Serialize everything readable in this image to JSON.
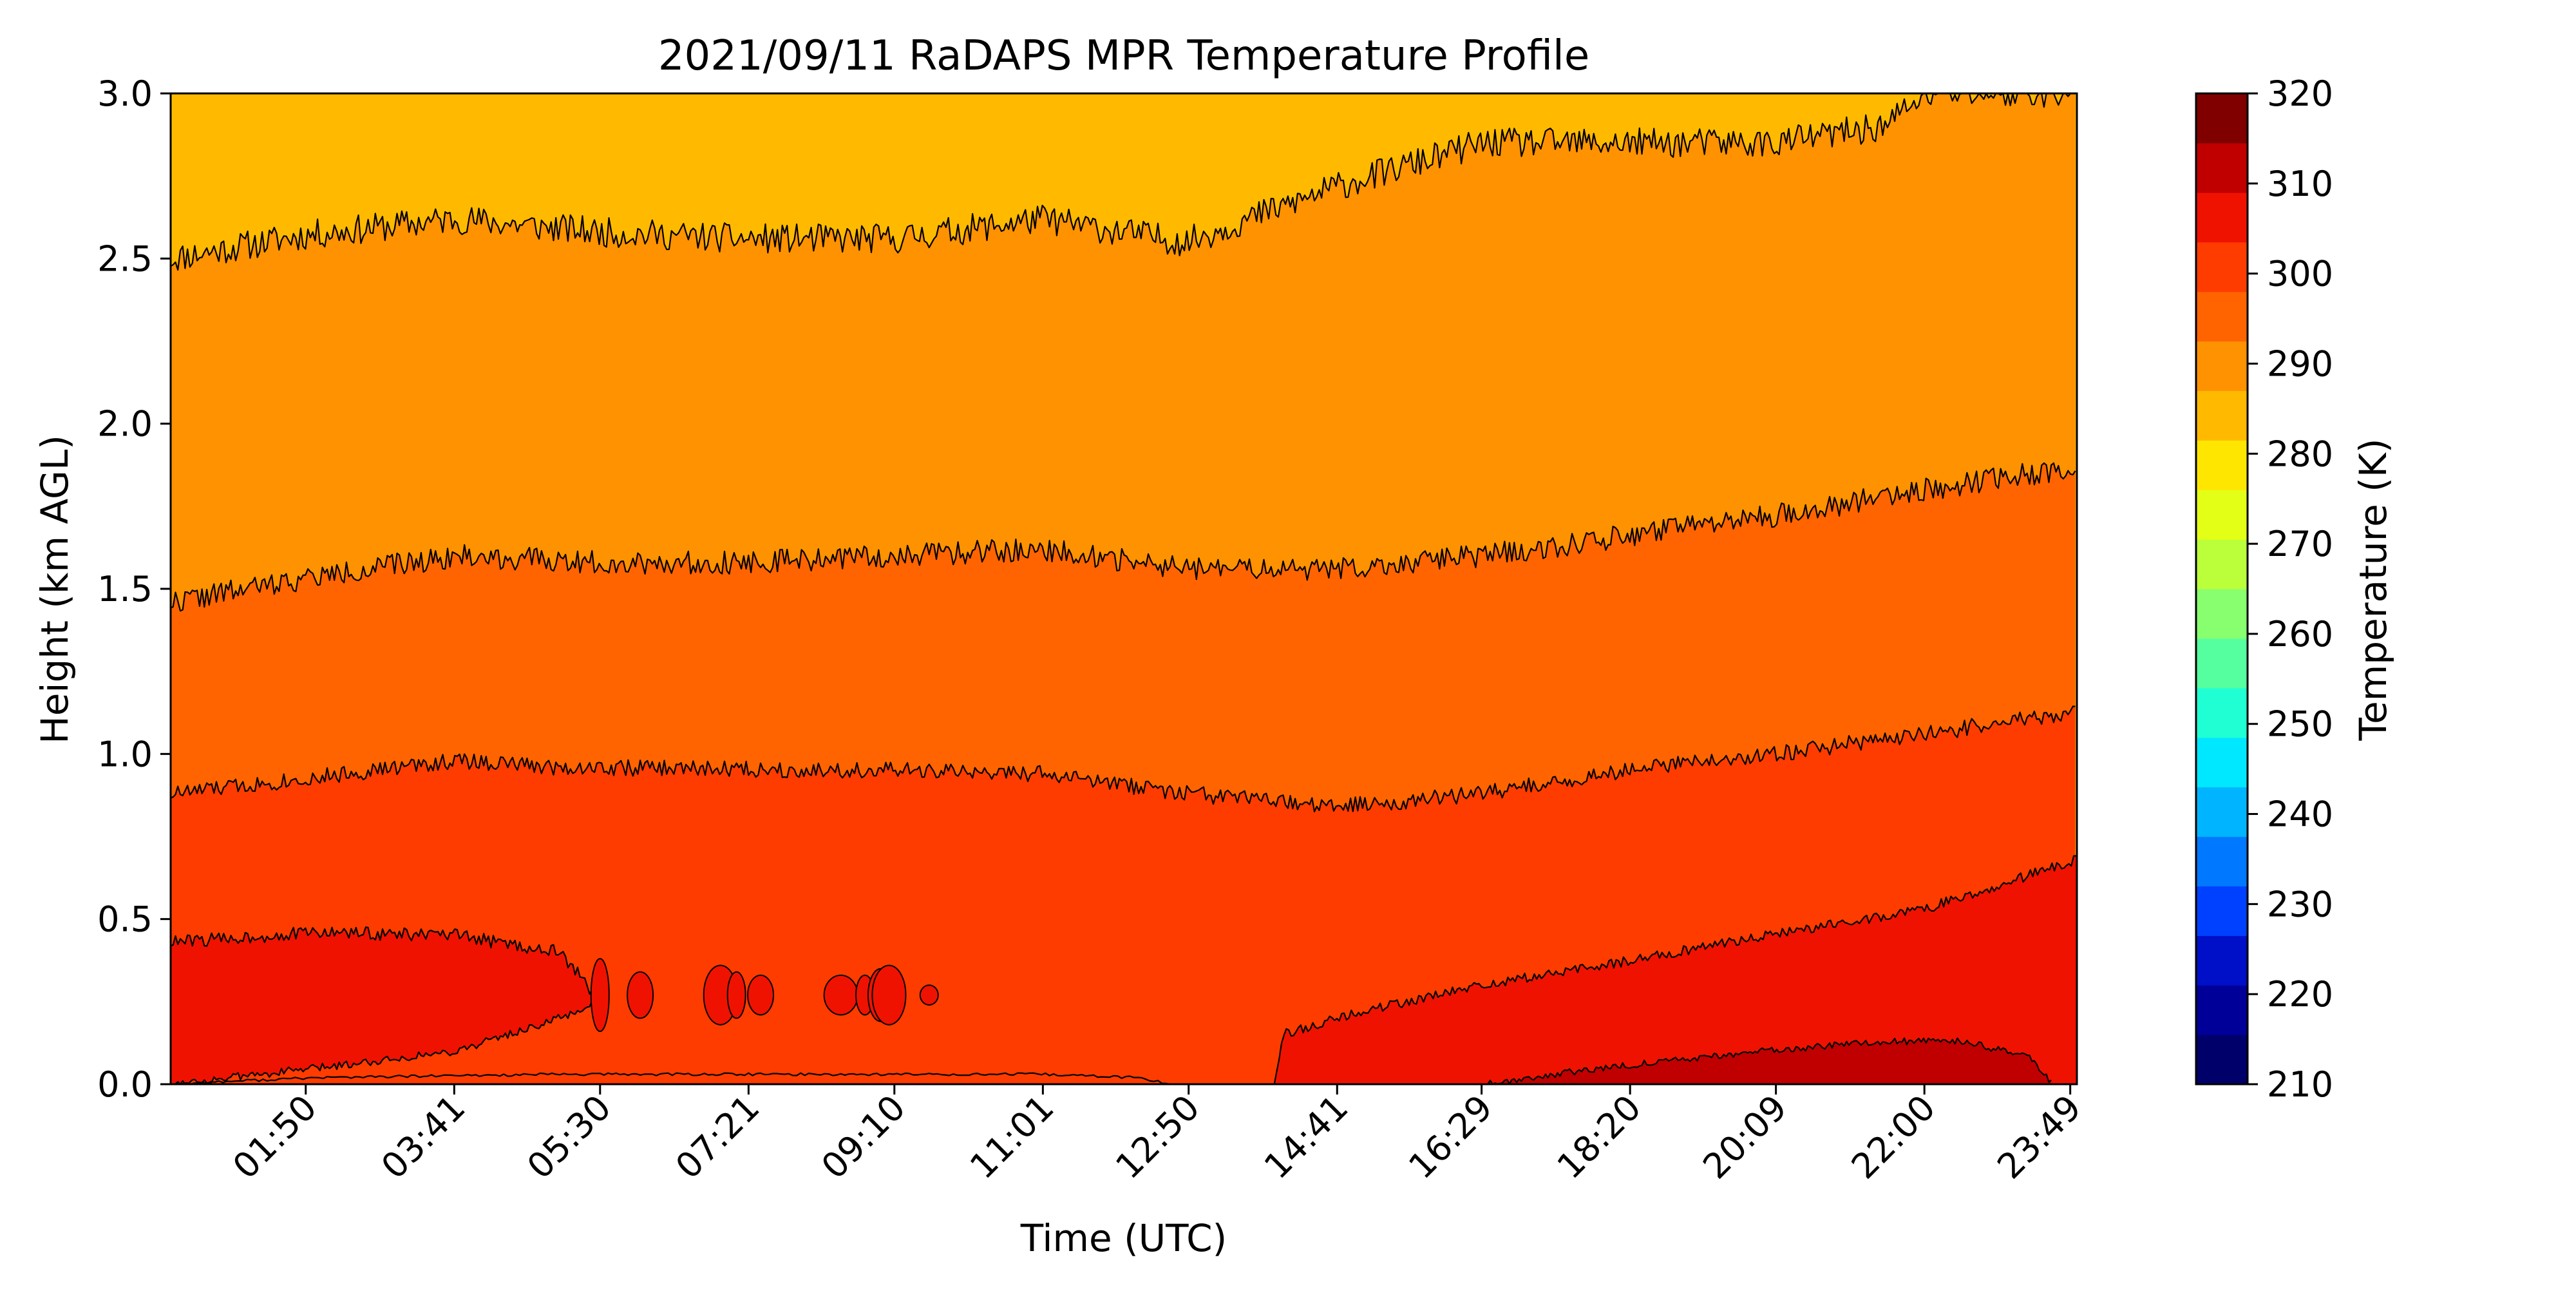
{
  "chart_data": {
    "type": "heatmap",
    "subtype": "filled-contour",
    "title": "2021/09/11 RaDAPS MPR Temperature Profile",
    "xlabel": "Time (UTC)",
    "ylabel": "Height (km AGL)",
    "x_tick_labels": [
      "01:50",
      "03:41",
      "05:30",
      "07:21",
      "09:10",
      "11:01",
      "12:50",
      "14:41",
      "16:29",
      "18:20",
      "20:09",
      "22:00",
      "23:49"
    ],
    "x_tick_hours": [
      1.833,
      3.683,
      5.5,
      7.35,
      9.167,
      11.017,
      12.833,
      14.683,
      16.483,
      18.333,
      20.15,
      22.0,
      23.817
    ],
    "xlim_hours": [
      0.15,
      23.9
    ],
    "ylim": [
      0,
      3
    ],
    "y_ticks": [
      0.0,
      0.5,
      1.0,
      1.5,
      2.0,
      2.5,
      3.0
    ],
    "y_tick_labels": [
      "0.0",
      "0.5",
      "1.0",
      "1.5",
      "2.0",
      "2.5",
      "3.0"
    ],
    "colorbar": {
      "label": "Temperature (K)",
      "range": [
        210,
        320
      ],
      "step": 5,
      "ticks": [
        210,
        220,
        230,
        240,
        250,
        260,
        270,
        280,
        290,
        300,
        310,
        320
      ],
      "tick_labels": [
        "210",
        "220",
        "230",
        "240",
        "250",
        "260",
        "270",
        "280",
        "290",
        "300",
        "310",
        "320"
      ],
      "colors": [
        "#00006b",
        "#000099",
        "#0010c8",
        "#0040ff",
        "#0078ff",
        "#00b4ff",
        "#00e8ff",
        "#20ffd4",
        "#55ffa0",
        "#88ff6e",
        "#bbff3a",
        "#e4ff16",
        "#ffe600",
        "#ffba00",
        "#ff9200",
        "#ff6400",
        "#ff3c00",
        "#f01200",
        "#c00000",
        "#800000"
      ],
      "colormap": "jet"
    },
    "contours": [
      {
        "temperature": 300,
        "heights_km": [
          [
            0.15,
            0.0
          ],
          [
            1.0,
            0.01
          ],
          [
            2.0,
            0.02
          ],
          [
            5.0,
            0.03
          ],
          [
            9.0,
            0.03
          ],
          [
            11.0,
            0.03
          ],
          [
            12.2,
            0.02
          ],
          [
            12.6,
            0.0
          ]
        ]
      },
      {
        "temperature": 295,
        "heights_km": [
          [
            0.15,
            0.43
          ],
          [
            2.0,
            0.46
          ],
          [
            3.7,
            0.45
          ],
          [
            5.0,
            0.4
          ],
          [
            5.5,
            0.25
          ],
          [
            5.5,
            0.0
          ]
        ]
      },
      {
        "temperature": 295,
        "heights_km": [
          [
            0.15,
            0.0
          ],
          [
            2.0,
            0.05
          ],
          [
            3.7,
            0.1
          ],
          [
            5.0,
            0.2
          ],
          [
            5.5,
            0.25
          ]
        ]
      },
      {
        "temperature": 295,
        "heights_km": [
          [
            13.9,
            0.0
          ],
          [
            14.0,
            0.15
          ],
          [
            15.0,
            0.22
          ],
          [
            16.5,
            0.3
          ],
          [
            18.0,
            0.36
          ],
          [
            20.0,
            0.45
          ],
          [
            22.0,
            0.53
          ],
          [
            23.9,
            0.68
          ]
        ]
      },
      {
        "temperature": 300,
        "heights_km": [
          [
            16.5,
            0.0
          ],
          [
            18.0,
            0.05
          ],
          [
            20.0,
            0.1
          ],
          [
            21.5,
            0.13
          ],
          [
            22.5,
            0.13
          ],
          [
            23.3,
            0.08
          ],
          [
            23.6,
            0.0
          ]
        ]
      },
      {
        "temperature": 290,
        "heights_km": [
          [
            0.15,
            0.88
          ],
          [
            2.0,
            0.93
          ],
          [
            3.7,
            0.98
          ],
          [
            5.0,
            0.96
          ],
          [
            9.0,
            0.95
          ],
          [
            11.0,
            0.94
          ],
          [
            12.8,
            0.88
          ],
          [
            14.7,
            0.84
          ],
          [
            16.5,
            0.88
          ],
          [
            18.3,
            0.95
          ],
          [
            20.1,
            1.0
          ],
          [
            22.0,
            1.06
          ],
          [
            23.9,
            1.13
          ]
        ]
      },
      {
        "temperature": 285,
        "heights_km": [
          [
            0.15,
            1.46
          ],
          [
            1.8,
            1.53
          ],
          [
            3.7,
            1.6
          ],
          [
            5.5,
            1.58
          ],
          [
            7.3,
            1.58
          ],
          [
            9.2,
            1.6
          ],
          [
            11.0,
            1.62
          ],
          [
            12.8,
            1.56
          ],
          [
            14.7,
            1.56
          ],
          [
            16.5,
            1.6
          ],
          [
            18.3,
            1.66
          ],
          [
            20.1,
            1.72
          ],
          [
            22.0,
            1.8
          ],
          [
            23.9,
            1.87
          ]
        ]
      },
      {
        "temperature": 280,
        "heights_km": [
          [
            0.15,
            2.5
          ],
          [
            1.8,
            2.57
          ],
          [
            3.7,
            2.62
          ],
          [
            5.5,
            2.58
          ],
          [
            7.3,
            2.56
          ],
          [
            9.2,
            2.56
          ],
          [
            11.0,
            2.62
          ],
          [
            12.8,
            2.55
          ],
          [
            14.7,
            2.72
          ],
          [
            16.5,
            2.85
          ],
          [
            18.3,
            2.85
          ],
          [
            20.1,
            2.85
          ],
          [
            21.5,
            2.9
          ],
          [
            22.0,
            3.0
          ],
          [
            23.9,
            3.0
          ]
        ]
      }
    ],
    "bands": [
      {
        "temperature_range": [
          275,
          280
        ],
        "color": "#e4ff16",
        "position": "above 280 K contour"
      },
      {
        "temperature_range": [
          280,
          285
        ],
        "color": "#ffe600",
        "position": "between 285 K and 280 K contours"
      },
      {
        "temperature_range": [
          285,
          290
        ],
        "color": "#ffba00",
        "position": "between 290 K and 285 K contours"
      },
      {
        "temperature_range": [
          290,
          295
        ],
        "color": "#ff9200",
        "position": "between 295 K and 290 K contours"
      },
      {
        "temperature_range": [
          295,
          300
        ],
        "color": "#ff6400",
        "position": "near-surface warm layers"
      },
      {
        "temperature_range": [
          300,
          305
        ],
        "color": "#ff3c00",
        "position": "surface, late day"
      }
    ]
  }
}
